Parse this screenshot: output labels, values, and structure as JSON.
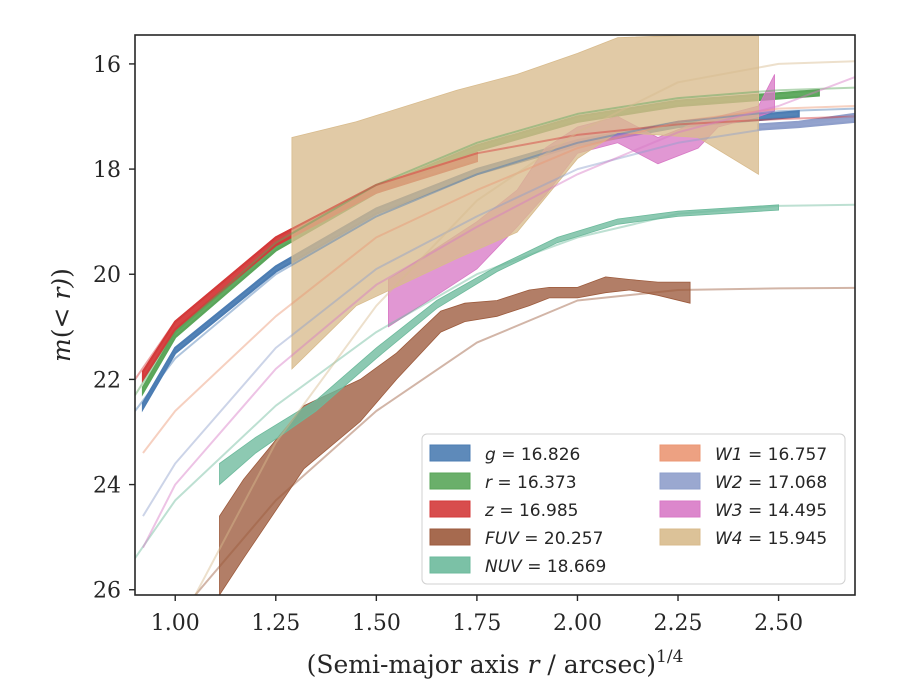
{
  "chart_data": {
    "type": "line",
    "xlabel": "(Semi-major axis r / arcsec)^1/4",
    "ylabel": "m(< r) (mag)",
    "xlim": [
      0.9,
      2.69
    ],
    "ylim": [
      26.1,
      15.45
    ],
    "y_inverted": true,
    "x_ticks": [
      "1.00",
      "1.25",
      "1.50",
      "1.75",
      "2.00",
      "2.25",
      "2.50"
    ],
    "y_ticks": [
      "16",
      "18",
      "20",
      "22",
      "24",
      "26"
    ],
    "grid": false,
    "legend": {
      "placement": "lower right",
      "columns": 2
    },
    "series": [
      {
        "name": "g = 16.826",
        "color": "#4c7db3",
        "model": [
          [
            0.9,
            22.6
          ],
          [
            1.0,
            21.6
          ],
          [
            1.25,
            20.0
          ],
          [
            1.5,
            18.9
          ],
          [
            1.75,
            18.1
          ],
          [
            2.0,
            17.5
          ],
          [
            2.25,
            17.1
          ],
          [
            2.5,
            16.9
          ],
          [
            2.69,
            16.85
          ]
        ],
        "band": [
          [
            0.92,
            22.45,
            22.55
          ],
          [
            1.0,
            21.4,
            21.5
          ],
          [
            1.25,
            19.85,
            19.95
          ],
          [
            1.5,
            18.75,
            18.85
          ],
          [
            1.75,
            18.0,
            18.1
          ],
          [
            2.0,
            17.45,
            17.55
          ],
          [
            2.25,
            17.1,
            17.2
          ],
          [
            2.55,
            16.9,
            17.0
          ]
        ]
      },
      {
        "name": "r = 16.373",
        "color": "#5aa65a",
        "model": [
          [
            0.9,
            22.3
          ],
          [
            1.0,
            21.1
          ],
          [
            1.25,
            19.4
          ],
          [
            1.5,
            18.3
          ],
          [
            1.75,
            17.5
          ],
          [
            2.0,
            16.95
          ],
          [
            2.25,
            16.65
          ],
          [
            2.5,
            16.5
          ],
          [
            2.69,
            16.45
          ]
        ],
        "band": [
          [
            0.92,
            22.15,
            22.25
          ],
          [
            1.0,
            21.1,
            21.2
          ],
          [
            1.25,
            19.45,
            19.55
          ],
          [
            1.5,
            18.35,
            18.45
          ],
          [
            1.75,
            17.55,
            17.65
          ],
          [
            2.0,
            17.0,
            17.1
          ],
          [
            2.25,
            16.7,
            16.8
          ],
          [
            2.6,
            16.5,
            16.6
          ]
        ]
      },
      {
        "name": "z = 16.985",
        "color": "#d43a3a",
        "model": [
          [
            0.9,
            22.0
          ],
          [
            1.0,
            20.9
          ],
          [
            1.25,
            19.3
          ],
          [
            1.5,
            18.3
          ],
          [
            1.75,
            17.7
          ],
          [
            2.0,
            17.35
          ],
          [
            2.25,
            17.15
          ],
          [
            2.5,
            17.05
          ],
          [
            2.69,
            17.0
          ]
        ],
        "band": [
          [
            0.92,
            21.85,
            22.0
          ],
          [
            1.0,
            20.9,
            21.05
          ],
          [
            1.25,
            19.3,
            19.45
          ],
          [
            1.5,
            18.3,
            18.45
          ],
          [
            1.75,
            17.7,
            17.85
          ]
        ]
      },
      {
        "name": "FUV = 20.257",
        "color": "#9c5a3c",
        "model": [
          [
            1.05,
            26.1
          ],
          [
            1.25,
            24.3
          ],
          [
            1.5,
            22.6
          ],
          [
            1.75,
            21.3
          ],
          [
            2.0,
            20.5
          ],
          [
            2.25,
            20.3
          ],
          [
            2.5,
            20.27
          ],
          [
            2.69,
            20.26
          ]
        ],
        "band": [
          [
            1.11,
            24.6,
            26.1
          ],
          [
            1.17,
            23.9,
            25.4
          ],
          [
            1.32,
            22.5,
            23.7
          ],
          [
            1.46,
            22.0,
            22.8
          ],
          [
            1.55,
            21.5,
            22.0
          ],
          [
            1.66,
            20.7,
            21.1
          ],
          [
            1.72,
            20.55,
            20.9
          ],
          [
            1.8,
            20.5,
            20.8
          ],
          [
            1.88,
            20.3,
            20.6
          ],
          [
            1.93,
            20.25,
            20.45
          ],
          [
            2.0,
            20.25,
            20.45
          ],
          [
            2.07,
            20.05,
            20.35
          ],
          [
            2.13,
            20.1,
            20.3
          ],
          [
            2.2,
            20.15,
            20.4
          ],
          [
            2.28,
            20.15,
            20.55
          ]
        ]
      },
      {
        "name": "NUV = 18.669",
        "color": "#6dba9c",
        "model": [
          [
            0.9,
            25.4
          ],
          [
            1.0,
            24.3
          ],
          [
            1.25,
            22.5
          ],
          [
            1.5,
            21.1
          ],
          [
            1.75,
            20.0
          ],
          [
            2.0,
            19.3
          ],
          [
            2.25,
            18.85
          ],
          [
            2.5,
            18.7
          ],
          [
            2.69,
            18.68
          ]
        ],
        "band": [
          [
            1.11,
            23.6,
            24.0
          ],
          [
            1.2,
            23.1,
            23.4
          ],
          [
            1.35,
            22.4,
            22.6
          ],
          [
            1.5,
            21.4,
            21.6
          ],
          [
            1.65,
            20.5,
            20.65
          ],
          [
            1.8,
            19.85,
            19.95
          ],
          [
            1.95,
            19.3,
            19.4
          ],
          [
            2.1,
            18.95,
            19.05
          ],
          [
            2.25,
            18.8,
            18.9
          ],
          [
            2.5,
            18.68,
            18.78
          ]
        ]
      },
      {
        "name": "W1 = 16.757",
        "color": "#eb9774",
        "model": [
          [
            0.92,
            23.4
          ],
          [
            1.0,
            22.6
          ],
          [
            1.25,
            20.8
          ],
          [
            1.5,
            19.3
          ],
          [
            1.75,
            18.4
          ],
          [
            2.0,
            17.6
          ],
          [
            2.25,
            17.1
          ],
          [
            2.5,
            16.85
          ],
          [
            2.69,
            16.8
          ]
        ],
        "band": []
      },
      {
        "name": "W2 = 17.068",
        "color": "#8f9fcb",
        "model": [
          [
            0.92,
            24.6
          ],
          [
            1.0,
            23.6
          ],
          [
            1.25,
            21.4
          ],
          [
            1.5,
            19.9
          ],
          [
            1.75,
            18.9
          ],
          [
            2.0,
            18.0
          ],
          [
            2.25,
            17.5
          ],
          [
            2.5,
            17.2
          ],
          [
            2.69,
            17.0
          ]
        ],
        "band": [
          [
            2.45,
            17.15,
            17.25
          ],
          [
            2.55,
            17.1,
            17.2
          ],
          [
            2.69,
            16.95,
            17.1
          ]
        ]
      },
      {
        "name": "W3 = 14.495",
        "color": "#d87ac6",
        "model": [
          [
            0.92,
            25.2
          ],
          [
            1.0,
            24.0
          ],
          [
            1.25,
            21.8
          ],
          [
            1.5,
            20.2
          ],
          [
            1.75,
            19.1
          ],
          [
            2.0,
            18.1
          ],
          [
            2.25,
            17.3
          ],
          [
            2.5,
            16.8
          ],
          [
            2.69,
            16.25
          ]
        ],
        "band": [
          [
            1.53,
            20.1,
            21.0
          ],
          [
            1.75,
            19.0,
            19.9
          ],
          [
            1.85,
            18.4,
            19.1
          ],
          [
            1.92,
            17.6,
            18.5
          ],
          [
            2.0,
            17.2,
            17.7
          ],
          [
            2.1,
            17.0,
            17.5
          ],
          [
            2.2,
            17.4,
            17.9
          ],
          [
            2.3,
            17.1,
            17.6
          ],
          [
            2.35,
            17.0,
            17.2
          ],
          [
            2.45,
            16.8,
            17.0
          ],
          [
            2.49,
            16.2,
            16.9
          ]
        ]
      },
      {
        "name": "W4 = 15.945",
        "color": "#d8bb8d",
        "model": [
          [
            1.05,
            26.1
          ],
          [
            1.25,
            23.2
          ],
          [
            1.5,
            20.6
          ],
          [
            1.75,
            18.6
          ],
          [
            2.0,
            17.3
          ],
          [
            2.25,
            16.35
          ],
          [
            2.5,
            16.0
          ],
          [
            2.69,
            15.95
          ]
        ],
        "band": [
          [
            1.29,
            17.4,
            21.8
          ],
          [
            1.45,
            17.1,
            20.6
          ],
          [
            1.7,
            16.5,
            19.7
          ],
          [
            1.85,
            16.2,
            19.2
          ],
          [
            2.0,
            15.8,
            17.8
          ],
          [
            2.1,
            15.5,
            17.3
          ],
          [
            2.3,
            15.45,
            17.4
          ],
          [
            2.45,
            15.45,
            18.1
          ]
        ]
      }
    ]
  }
}
